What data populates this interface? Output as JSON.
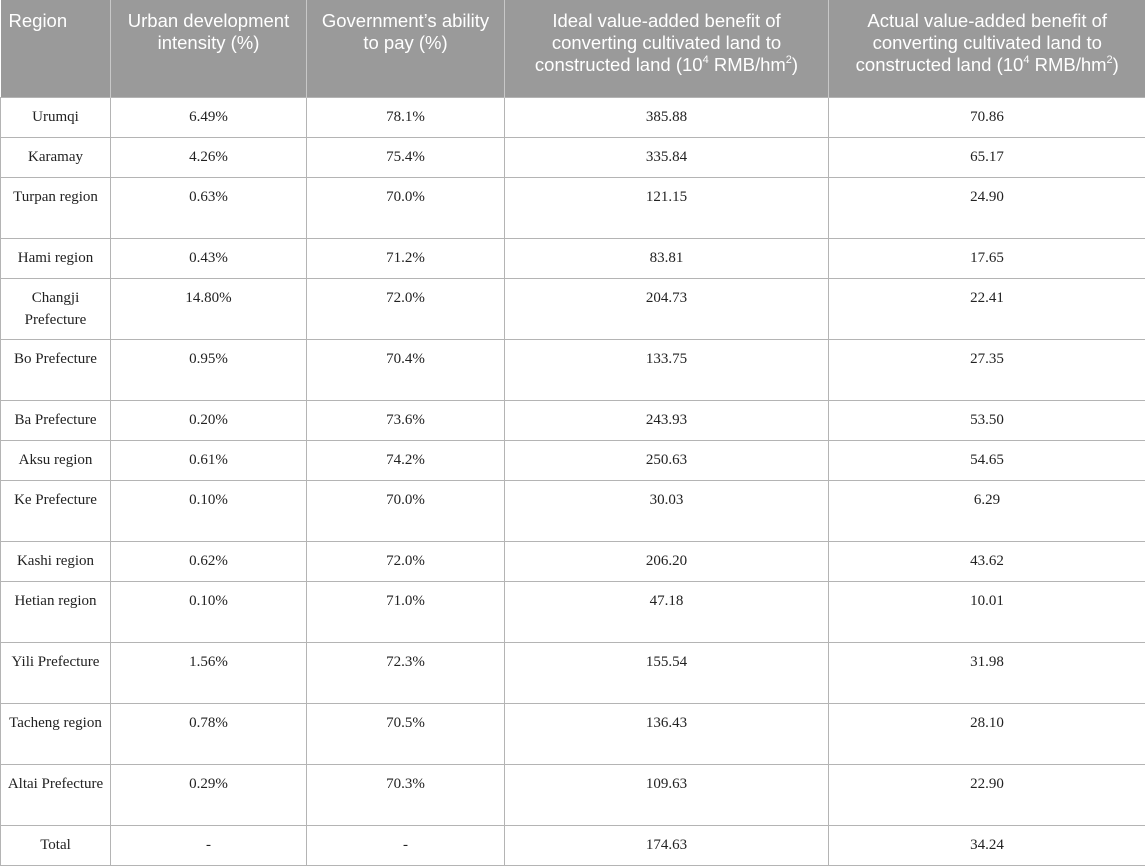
{
  "headers": [
    "Region",
    "Urban development intensity (%)",
    "Government’s ability to pay (%)",
    {
      "pre": "Ideal value-added benefit of converting cultivated land to constructed land (10",
      "sup1": "4",
      "mid": " RMB/hm",
      "sup2": "2",
      "post": ")"
    },
    {
      "pre": "Actual value-added benefit of converting cultivated land to constructed land (10",
      "sup1": "4",
      "mid": " RMB/hm",
      "sup2": "2",
      "post": ")"
    }
  ],
  "rows": [
    {
      "region": "Urumqi",
      "intensity": "6.49%",
      "ability": "78.1%",
      "ideal": "385.88",
      "actual": "70.86",
      "tall": false
    },
    {
      "region": "Karamay",
      "intensity": "4.26%",
      "ability": "75.4%",
      "ideal": "335.84",
      "actual": "65.17",
      "tall": false
    },
    {
      "region": "Turpan region",
      "intensity": "0.63%",
      "ability": "70.0%",
      "ideal": "121.15",
      "actual": "24.90",
      "tall": true
    },
    {
      "region": "Hami region",
      "intensity": "0.43%",
      "ability": "71.2%",
      "ideal": "83.81",
      "actual": "17.65",
      "tall": false
    },
    {
      "region": "Changji Prefecture",
      "intensity": "14.80%",
      "ability": "72.0%",
      "ideal": "204.73",
      "actual": "22.41",
      "tall": true
    },
    {
      "region": "Bo Prefecture",
      "intensity": "0.95%",
      "ability": "70.4%",
      "ideal": "133.75",
      "actual": "27.35",
      "tall": true
    },
    {
      "region": "Ba Prefecture",
      "intensity": "0.20%",
      "ability": "73.6%",
      "ideal": "243.93",
      "actual": "53.50",
      "tall": false
    },
    {
      "region": "Aksu region",
      "intensity": "0.61%",
      "ability": "74.2%",
      "ideal": "250.63",
      "actual": "54.65",
      "tall": false
    },
    {
      "region": "Ke Prefecture",
      "intensity": "0.10%",
      "ability": "70.0%",
      "ideal": "30.03",
      "actual": "6.29",
      "tall": true
    },
    {
      "region": "Kashi region",
      "intensity": "0.62%",
      "ability": "72.0%",
      "ideal": "206.20",
      "actual": "43.62",
      "tall": false
    },
    {
      "region": "Hetian region",
      "intensity": "0.10%",
      "ability": "71.0%",
      "ideal": "47.18",
      "actual": "10.01",
      "tall": true
    },
    {
      "region": "Yili Prefecture",
      "intensity": "1.56%",
      "ability": "72.3%",
      "ideal": "155.54",
      "actual": "31.98",
      "tall": true
    },
    {
      "region": "Tacheng region",
      "intensity": "0.78%",
      "ability": "70.5%",
      "ideal": "136.43",
      "actual": "28.10",
      "tall": true
    },
    {
      "region": "Altai Prefecture",
      "intensity": "0.29%",
      "ability": "70.3%",
      "ideal": "109.63",
      "actual": "22.90",
      "tall": true
    },
    {
      "region": "Total",
      "intensity": "-",
      "ability": "-",
      "ideal": "174.63",
      "actual": "34.24",
      "tall": false
    }
  ]
}
